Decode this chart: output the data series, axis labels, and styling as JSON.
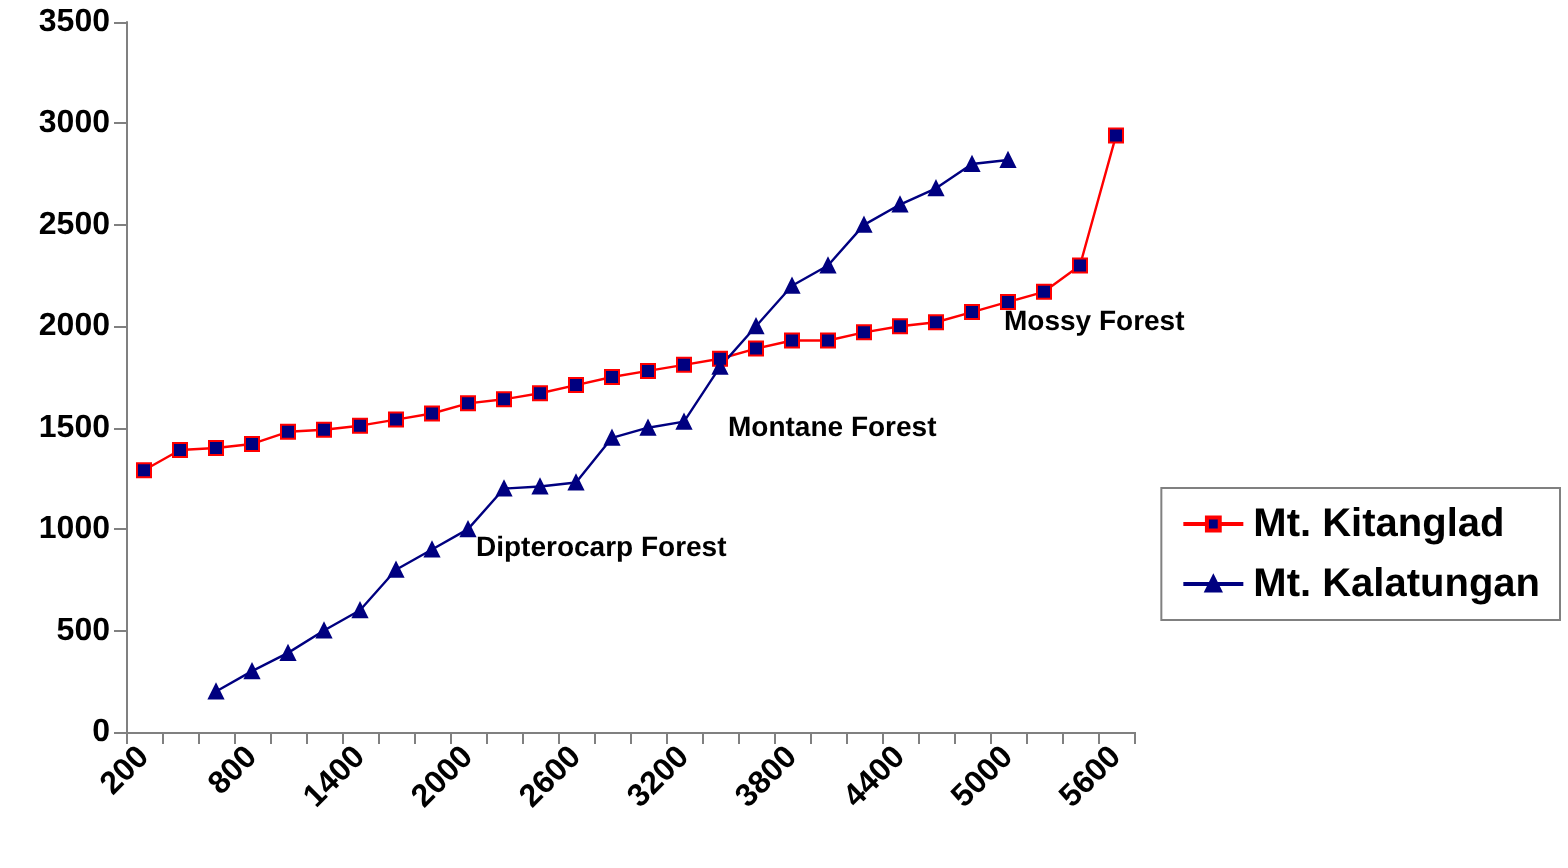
{
  "chart_data": {
    "type": "line",
    "categories": [
      "200",
      null,
      null,
      "800",
      null,
      null,
      "1400",
      null,
      null,
      "2000",
      null,
      null,
      "2600",
      null,
      null,
      "3200",
      null,
      null,
      "3800",
      null,
      null,
      "4400",
      null,
      null,
      "5000",
      null,
      null,
      "5600"
    ],
    "series": [
      {
        "name": "Mt. Kitanglad",
        "color": "#ff0000",
        "marker": "square",
        "values": [
          1290,
          1390,
          1400,
          1420,
          1480,
          1490,
          1510,
          1540,
          1570,
          1620,
          1640,
          1670,
          1710,
          1750,
          1780,
          1810,
          1840,
          1890,
          1930,
          1930,
          1970,
          2000,
          2020,
          2070,
          2120,
          2170,
          2300,
          2940
        ]
      },
      {
        "name": "Mt. Kalatungan",
        "color": "#000080",
        "marker": "triangle",
        "values": [
          null,
          null,
          200,
          300,
          390,
          500,
          600,
          800,
          900,
          1000,
          1200,
          1210,
          1230,
          1450,
          1500,
          1530,
          1800,
          2000,
          2200,
          2300,
          2500,
          2600,
          2680,
          2800,
          2820,
          null,
          null,
          null
        ]
      }
    ],
    "ylim": [
      0,
      3500
    ],
    "yticks": [
      0,
      500,
      1000,
      1500,
      2000,
      2500,
      3000,
      3500
    ],
    "grid": false,
    "legend": "right",
    "annotations": [
      "Dipterocarp Forest",
      "Montane Forest",
      "Mossy Forest"
    ]
  }
}
